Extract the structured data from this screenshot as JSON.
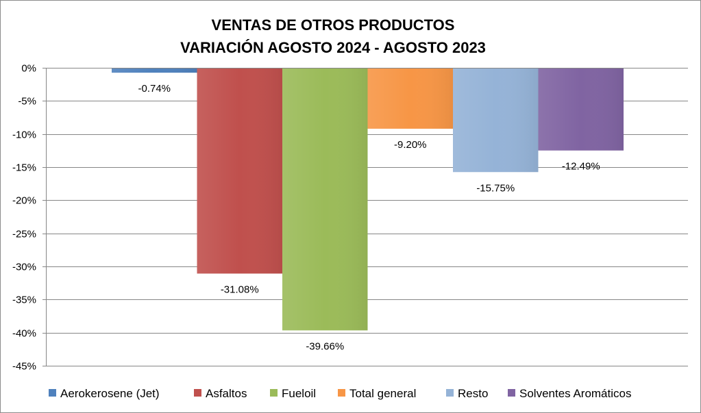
{
  "chart_data": {
    "type": "bar",
    "title": [
      "VENTAS DE OTROS PRODUCTOS",
      "VARIACIÓN AGOSTO 2024 - AGOSTO 2023"
    ],
    "xlabel": "",
    "ylabel": "",
    "ylim": [
      -45,
      0
    ],
    "yticks": [
      0,
      -5,
      -10,
      -15,
      -20,
      -25,
      -30,
      -35,
      -40,
      -45
    ],
    "ytick_labels": [
      "0%",
      "-5%",
      "-10%",
      "-15%",
      "-20%",
      "-25%",
      "-30%",
      "-35%",
      "-40%",
      "-45%"
    ],
    "grid": true,
    "legend_position": "bottom",
    "series": [
      {
        "name": "Aerokerosene (Jet)",
        "values": [
          -0.74
        ],
        "label": "-0.74%",
        "color": "#4f81bd"
      },
      {
        "name": "Asfaltos",
        "values": [
          -31.08
        ],
        "label": "-31.08%",
        "color": "#c0504d"
      },
      {
        "name": "Fueloil",
        "values": [
          -39.66
        ],
        "label": "-39.66%",
        "color": "#9bbb59"
      },
      {
        "name": "Total general",
        "values": [
          -9.2
        ],
        "label": "-9.20%",
        "color": "#f79646"
      },
      {
        "name": "Resto",
        "values": [
          -15.75
        ],
        "label": "-15.75%",
        "color": "#95b3d7"
      },
      {
        "name": "Solventes Aromáticos",
        "values": [
          -12.49
        ],
        "label": "-12.49%",
        "color": "#8064a2"
      }
    ]
  }
}
